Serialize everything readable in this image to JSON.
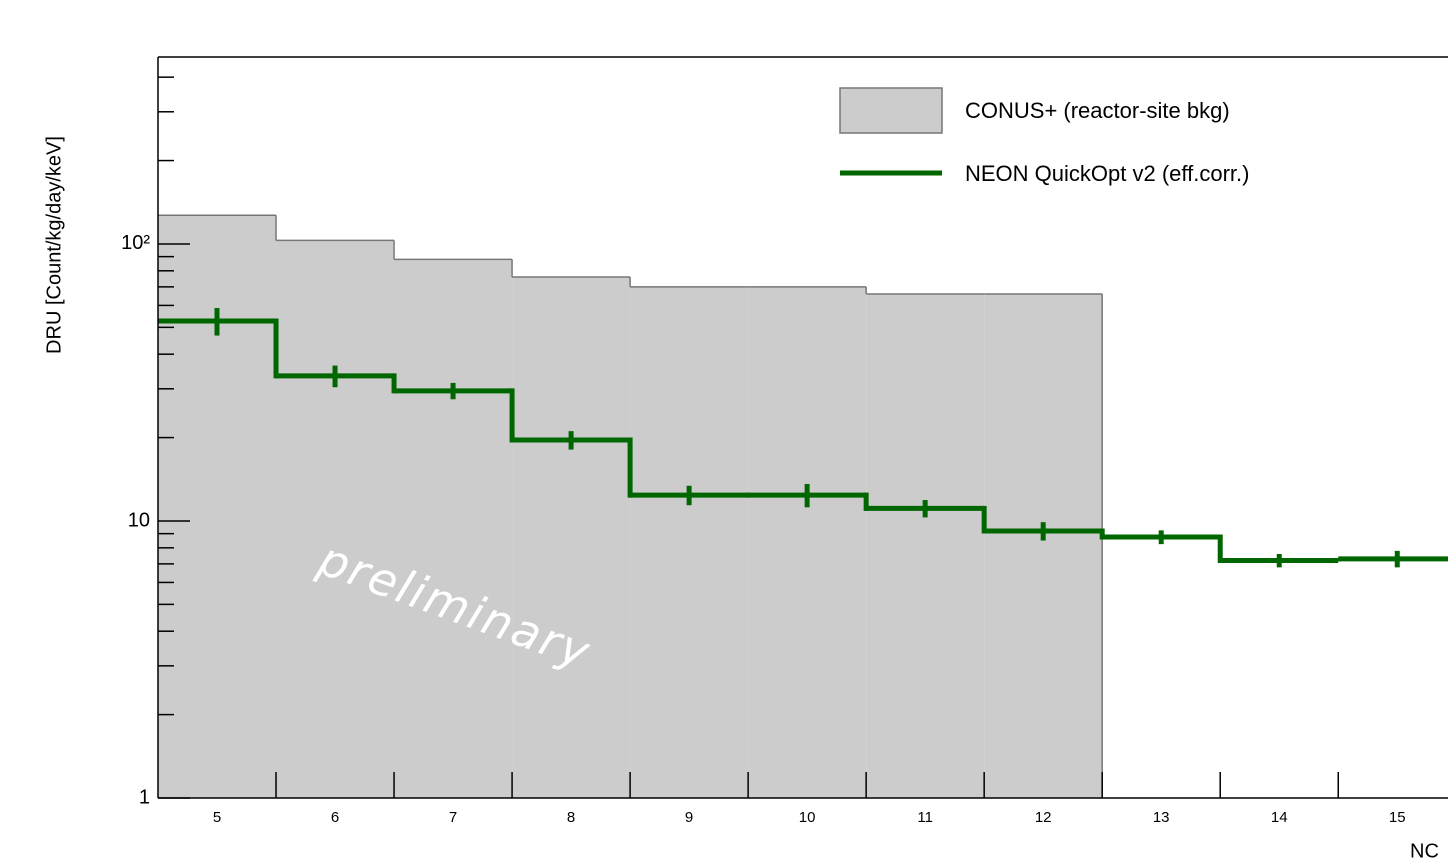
{
  "chart_data": {
    "type": "histogram",
    "y_label": "DRU [Count/kg/day/keV]",
    "x_label": "NC",
    "annotation": "preliminary",
    "bins": [
      4.5,
      5.5,
      6.5,
      7.5,
      8.5,
      9.5,
      10.5,
      11.5,
      12.5,
      13.5,
      14.5,
      15.5
    ],
    "series": [
      {
        "name": "CONUS+ (reactor-site bkg)",
        "color": "#cccccc",
        "style": "filled",
        "values": [
          127,
          103,
          88,
          76,
          70,
          70,
          66,
          66,
          null,
          null,
          null
        ]
      },
      {
        "name": "NEON QuickOpt v2 (eff.corr.)",
        "color": "#006600",
        "style": "step",
        "values": [
          52.7,
          33.4,
          29.5,
          19.6,
          12.4,
          12.4,
          11.1,
          9.2,
          8.75,
          7.2,
          7.3
        ],
        "errors": [
          6,
          3,
          2,
          1.5,
          1,
          1.2,
          0.8,
          0.7,
          0.5,
          0.4,
          0.5
        ]
      }
    ],
    "xlim": [
      4.5,
      15.43
    ],
    "xticks": [
      5,
      6,
      7,
      8,
      9,
      10,
      11,
      12,
      13,
      14,
      15
    ],
    "ylim": [
      1,
      473
    ],
    "yscale": "log",
    "yticks": [
      1,
      10,
      {
        "value": 100,
        "label": "10²"
      }
    ],
    "yminorticks": [
      2,
      3,
      4,
      5,
      6,
      7,
      8,
      9,
      20,
      30,
      40,
      50,
      60,
      70,
      80,
      90,
      200,
      300,
      400
    ],
    "legend": "upper right"
  }
}
